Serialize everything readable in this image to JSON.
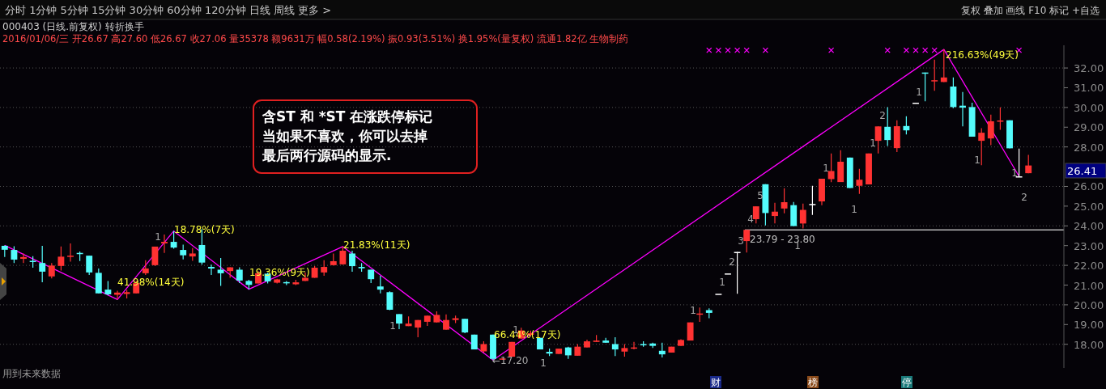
{
  "chart_data": {
    "type": "candlestick",
    "title": "000403 (日线.前复权) 转折换手",
    "subtitle": "2016/01/06/三 开26.67 高27.60 低26.67 收27.06 量35378 额9631万 幅0.58(2.19%) 振0.93(3.51%) 换1.95%(量复权) 流通1.82亿 生物制药",
    "categories": [
      null,
      null,
      null,
      null,
      null,
      null,
      null,
      null,
      null,
      null,
      null,
      null,
      null,
      null,
      null,
      null,
      null,
      null,
      null,
      null,
      null,
      null,
      null,
      null,
      null,
      null,
      null,
      null,
      null,
      null,
      null,
      null,
      null,
      null,
      null,
      null,
      null,
      null,
      null,
      null,
      null,
      null,
      null,
      null,
      null,
      null,
      null,
      null,
      null,
      null,
      null,
      null,
      null,
      null,
      null,
      null,
      null,
      null,
      null,
      null,
      null,
      null,
      null,
      null,
      null,
      null,
      null,
      null,
      null,
      null,
      null,
      null,
      null,
      null,
      null,
      null,
      null,
      null,
      null,
      null,
      null,
      null,
      null,
      null,
      null,
      null,
      null,
      null,
      null,
      null,
      null,
      null,
      null,
      null,
      null,
      null,
      null,
      null,
      null,
      null,
      null,
      null,
      null,
      null,
      null,
      null,
      null,
      null,
      null,
      null
    ],
    "ohlc": [
      [
        22.99,
        23.01,
        22.42,
        22.79
      ],
      [
        22.78,
        22.97,
        22.12,
        22.29
      ],
      [
        22.33,
        22.6,
        22.12,
        22.42
      ],
      [
        22.23,
        22.47,
        21.88,
        22.21
      ],
      [
        22.12,
        22.99,
        21.14,
        21.68
      ],
      [
        21.44,
        22.12,
        21.34,
        21.99
      ],
      [
        21.97,
        22.96,
        21.74,
        22.44
      ],
      [
        22.44,
        23.11,
        22.19,
        22.49
      ],
      [
        22.63,
        22.7,
        22.22,
        22.6
      ],
      [
        22.49,
        22.49,
        21.51,
        21.64
      ],
      [
        21.62,
        21.84,
        20.58,
        20.58
      ],
      [
        20.77,
        21.21,
        20.48,
        20.53
      ],
      [
        20.51,
        20.71,
        20.27,
        20.62
      ],
      [
        20.55,
        20.75,
        20.32,
        20.64
      ],
      [
        20.58,
        21.23,
        20.58,
        21.1
      ],
      [
        21.6,
        22.26,
        21.51,
        21.84
      ],
      [
        22.01,
        22.95,
        21.97,
        22.95
      ],
      [
        23.11,
        23.56,
        22.63,
        23.19
      ],
      [
        23.19,
        23.74,
        22.84,
        22.9
      ],
      [
        22.78,
        23.05,
        22.3,
        22.51
      ],
      [
        22.45,
        22.88,
        22.23,
        22.6
      ],
      [
        23.03,
        23.84,
        22.03,
        22.14
      ],
      [
        21.92,
        22.03,
        21.51,
        21.84
      ],
      [
        21.78,
        22.37,
        20.96,
        21.6
      ],
      [
        21.71,
        21.9,
        21.37,
        21.9
      ],
      [
        21.78,
        21.9,
        21.1,
        21.23
      ],
      [
        21.21,
        21.27,
        20.79,
        21.01
      ],
      [
        21.08,
        21.71,
        21.08,
        21.6
      ],
      [
        21.58,
        21.62,
        21.08,
        21.19
      ],
      [
        21.12,
        21.32,
        21.08,
        21.29
      ],
      [
        21.15,
        21.21,
        21.0,
        21.1
      ],
      [
        21.04,
        21.27,
        21.0,
        21.14
      ],
      [
        21.21,
        21.64,
        21.21,
        21.37
      ],
      [
        21.37,
        21.96,
        21.37,
        21.88
      ],
      [
        21.64,
        22.26,
        21.47,
        21.92
      ],
      [
        22.01,
        22.6,
        21.99,
        22.21
      ],
      [
        22.05,
        22.95,
        22.03,
        22.74
      ],
      [
        22.6,
        22.74,
        21.68,
        21.96
      ],
      [
        21.92,
        22.12,
        21.68,
        21.85
      ],
      [
        21.78,
        21.78,
        21.1,
        21.3
      ],
      [
        20.93,
        21.47,
        20.58,
        20.77
      ],
      [
        20.64,
        20.68,
        19.73,
        19.75
      ],
      [
        19.53,
        19.53,
        18.77,
        19.05
      ],
      [
        18.92,
        19.41,
        18.92,
        19.05
      ],
      [
        18.85,
        19.23,
        18.36,
        19.23
      ],
      [
        19.14,
        19.45,
        18.93,
        19.45
      ],
      [
        19.11,
        19.67,
        19.11,
        19.49
      ],
      [
        18.74,
        19.51,
        18.74,
        19.23
      ],
      [
        19.23,
        19.45,
        19.07,
        19.32
      ],
      [
        19.29,
        19.29,
        18.56,
        18.6
      ],
      [
        18.49,
        18.49,
        17.74,
        17.74
      ],
      [
        17.64,
        18.15,
        17.58,
        18.01
      ],
      [
        18.49,
        18.49,
        17.2,
        17.26
      ],
      [
        17.22,
        17.3,
        17.21,
        17.28
      ],
      [
        17.37,
        18.12,
        17.37,
        18.12
      ],
      [
        18.29,
        18.84,
        18.29,
        18.7
      ],
      [
        18.48,
        18.7,
        18.4,
        18.56
      ],
      [
        18.33,
        18.33,
        17.74,
        17.74
      ],
      [
        17.62,
        17.78,
        17.4,
        17.53
      ],
      [
        17.51,
        17.78,
        17.51,
        17.78
      ],
      [
        17.84,
        17.88,
        17.26,
        17.44
      ],
      [
        17.42,
        18.01,
        17.42,
        17.88
      ],
      [
        17.84,
        18.23,
        17.84,
        18.15
      ],
      [
        18.12,
        18.47,
        18.12,
        18.19
      ],
      [
        18.19,
        18.33,
        18.08,
        18.08
      ],
      [
        18.01,
        18.36,
        17.4,
        17.74
      ],
      [
        17.63,
        18.01,
        17.37,
        17.81
      ],
      [
        17.78,
        18.12,
        17.74,
        17.84
      ],
      [
        18.01,
        18.15,
        17.88,
        17.95
      ],
      [
        18.04,
        18.08,
        17.81,
        17.92
      ],
      [
        17.67,
        18.08,
        17.33,
        17.49
      ],
      [
        17.58,
        17.88,
        17.58,
        17.88
      ],
      [
        17.92,
        18.25,
        17.92,
        18.22
      ],
      [
        18.19,
        19.11,
        18.19,
        19.11
      ],
      [
        19.51,
        19.86,
        19.14,
        19.56
      ],
      [
        19.73,
        19.82,
        19.32,
        19.59
      ],
      [
        20.56,
        20.56,
        20.56,
        20.56
      ],
      [
        21.59,
        21.59,
        21.59,
        21.59
      ],
      [
        22.68,
        22.68,
        20.56,
        22.68
      ],
      [
        23.23,
        23.8,
        22.65,
        23.8
      ],
      [
        24.34,
        24.99,
        24.12,
        24.99
      ],
      [
        26.11,
        26.11,
        24.02,
        24.65
      ],
      [
        24.5,
        25.17,
        24.12,
        24.72
      ],
      [
        24.88,
        25.91,
        24.64,
        25.2
      ],
      [
        25.05,
        25.21,
        23.99,
        23.99
      ],
      [
        24.12,
        25.13,
        23.87,
        24.81
      ],
      [
        25.11,
        26.03,
        24.55,
        25.11
      ],
      [
        25.24,
        26.39,
        25.05,
        26.39
      ],
      [
        26.37,
        27.67,
        26.21,
        26.78
      ],
      [
        26.22,
        27.83,
        26.22,
        27.25
      ],
      [
        27.46,
        27.46,
        25.92,
        25.92
      ],
      [
        26.03,
        26.89,
        25.62,
        26.34
      ],
      [
        26.1,
        27.67,
        26.1,
        27.67
      ],
      [
        28.31,
        29.04,
        27.67,
        29.04
      ],
      [
        29.02,
        30.02,
        28.05,
        28.35
      ],
      [
        27.94,
        29.35,
        27.74,
        29.05
      ],
      [
        29.06,
        29.55,
        28.63,
        28.84
      ],
      [
        30.24,
        30.24,
        30.24,
        30.24
      ],
      [
        31.77,
        31.77,
        30.31,
        31.77
      ],
      [
        31.34,
        32.42,
        30.84,
        31.38
      ],
      [
        31.29,
        32.94,
        31.29,
        31.52
      ],
      [
        31.06,
        31.52,
        29.96,
        30.02
      ],
      [
        30.09,
        30.78,
        29.04,
        29.99
      ],
      [
        30.02,
        30.24,
        28.52,
        28.52
      ],
      [
        28.31,
        28.95,
        27.08,
        28.72
      ],
      [
        28.43,
        29.64,
        28.09,
        29.3
      ],
      [
        29.28,
        30.01,
        28.87,
        29.34
      ],
      [
        29.35,
        29.35,
        27.93,
        27.93
      ],
      [
        26.51,
        27.92,
        26.51,
        26.51
      ],
      [
        26.67,
        27.6,
        26.67,
        27.06
      ]
    ],
    "colors": [
      "#54fcfc",
      "#54fcfc",
      "#ff3232",
      "#54fcfc",
      "#54fcfc",
      "#ff3232",
      "#ff3232",
      "#ff3232",
      "#54fcfc",
      "#54fcfc",
      "#54fcfc",
      "#54fcfc",
      "#ff3232",
      "#ff3232",
      "#ff3232",
      "#ff3232",
      "#ff3232",
      "#ff3232",
      "#54fcfc",
      "#54fcfc",
      "#ff3232",
      "#54fcfc",
      "#54fcfc",
      "#54fcfc",
      "#ff3232",
      "#54fcfc",
      "#54fcfc",
      "#ff3232",
      "#54fcfc",
      "#ff3232",
      "#54fcfc",
      "#ff3232",
      "#ff3232",
      "#ff3232",
      "#ff3232",
      "#ff3232",
      "#ff3232",
      "#54fcfc",
      "#54fcfc",
      "#54fcfc",
      "#54fcfc",
      "#54fcfc",
      "#54fcfc",
      "#ff3232",
      "#ff3232",
      "#ff3232",
      "#ff3232",
      "#ff3232",
      "#ff3232",
      "#54fcfc",
      "#54fcfc",
      "#ff3232",
      "#54fcfc",
      "#ff3232",
      "#ff3232",
      "#ff3232",
      "#ff3232",
      "#54fcfc",
      "#54fcfc",
      "#ff3232",
      "#54fcfc",
      "#ff3232",
      "#ff3232",
      "#ff3232",
      "#54fcfc",
      "#54fcfc",
      "#ff3232",
      "#ff3232",
      "#54fcfc",
      "#54fcfc",
      "#54fcfc",
      "#ff3232",
      "#ff3232",
      "#ff3232",
      "#ff3232",
      "#54fcfc",
      "#ffffff",
      "#ffffff",
      "#ffffff",
      "#ff3232",
      "#ff3232",
      "#54fcfc",
      "#ff3232",
      "#ff3232",
      "#54fcfc",
      "#ff3232",
      "#ffffff",
      "#ff3232",
      "#ff3232",
      "#ff3232",
      "#54fcfc",
      "#ff3232",
      "#ff3232",
      "#ff3232",
      "#54fcfc",
      "#ff3232",
      "#54fcfc",
      "#ffffff",
      "#54fcfc",
      "#ff3232",
      "#ff3232",
      "#54fcfc",
      "#54fcfc",
      "#54fcfc",
      "#ff3232",
      "#ff3232",
      "#ff3232",
      "#54fcfc",
      "#ffffff",
      "#ff3232"
    ],
    "series": [
      {
        "type": "line",
        "color": "#ff00ff",
        "values": [
          23.01,
          null,
          null,
          null,
          null,
          null,
          null,
          null,
          null,
          null,
          null,
          null,
          20.27,
          null,
          null,
          null,
          null,
          null,
          23.74,
          null,
          null,
          null,
          null,
          null,
          null,
          null,
          20.79,
          null,
          null,
          null,
          null,
          null,
          null,
          null,
          null,
          null,
          22.95,
          null,
          null,
          null,
          null,
          null,
          null,
          null,
          null,
          null,
          null,
          null,
          null,
          null,
          null,
          null,
          17.2,
          null,
          null,
          null,
          null,
          null,
          null,
          null,
          null,
          null,
          null,
          null,
          null,
          null,
          null,
          null,
          null,
          null,
          null,
          null,
          null,
          null,
          null,
          null,
          null,
          null,
          null,
          null,
          null,
          null,
          null,
          null,
          null,
          null,
          null,
          null,
          null,
          null,
          null,
          null,
          null,
          null,
          null,
          null,
          null,
          null,
          null,
          null,
          32.94,
          null,
          null,
          null,
          null,
          null,
          null,
          null,
          26.51,
          null
        ]
      },
      {
        "type": "scatter",
        "color": "#ff00ff",
        "marker": "cross",
        "values": [
          null,
          null,
          null,
          null,
          null,
          null,
          null,
          null,
          null,
          null,
          null,
          null,
          null,
          null,
          null,
          null,
          null,
          null,
          null,
          null,
          null,
          null,
          null,
          null,
          null,
          null,
          null,
          null,
          null,
          null,
          null,
          null,
          null,
          null,
          null,
          null,
          null,
          null,
          null,
          null,
          null,
          null,
          null,
          null,
          null,
          null,
          null,
          null,
          null,
          null,
          null,
          null,
          null,
          null,
          null,
          null,
          null,
          null,
          null,
          null,
          null,
          null,
          null,
          null,
          null,
          null,
          null,
          null,
          null,
          null,
          null,
          null,
          null,
          null,
          null,
          32.9,
          32.9,
          32.9,
          32.9,
          32.9,
          null,
          32.9,
          null,
          null,
          null,
          null,
          null,
          null,
          32.9,
          null,
          null,
          null,
          null,
          null,
          32.9,
          null,
          32.9,
          32.9,
          32.9,
          32.9,
          null,
          null,
          null,
          null,
          null,
          null,
          null,
          null,
          32.9,
          null
        ]
      }
    ],
    "ylim": [
      16.8,
      33.15
    ],
    "yticks": [
      {
        "value": 18,
        "label": "18.00"
      },
      {
        "value": 19,
        "label": "19.00"
      },
      {
        "value": 20,
        "label": "20.00"
      },
      {
        "value": 21,
        "label": "21.00"
      },
      {
        "value": 22,
        "label": "22.00"
      },
      {
        "value": 23,
        "label": "23.00"
      },
      {
        "value": 24,
        "label": "24.00"
      },
      {
        "value": 25,
        "label": "25.00"
      },
      {
        "value": 26,
        "label": "26.00"
      },
      {
        "value": 28,
        "label": "28.00"
      },
      {
        "value": 29,
        "label": "29.00"
      },
      {
        "value": 30,
        "label": "30.00"
      },
      {
        "value": 31,
        "label": "31.00"
      },
      {
        "value": 32,
        "label": "32.00"
      }
    ],
    "grid": "y",
    "tick_labels": "y",
    "bands": [
      {
        "axis": "y",
        "from": 23.79,
        "to": 23.8,
        "label": "23.79 - 23.80",
        "color": "#c0c0c0"
      }
    ],
    "annotations": [
      "分时 1分钟 5分钟 15分钟 30分钟 60分钟 120分钟 日线 周线 更多 >",
      "复权 叠加 画线 F10 标记 +自选",
      "含ST 和 *ST 在涨跌停标记当如果不喜欢，你可以去掉最后两行源码的显示.",
      "用到未来数据",
      "41.98%(14天)",
      "18.78%(7天)",
      "19.36%(9天)",
      "21.83%(11天)",
      "66.44%(17天)",
      "216.63%(49天)",
      "←17.20",
      "1",
      "1",
      "1",
      "1",
      "1",
      "1",
      "2",
      "3",
      "4",
      "5",
      "1",
      "1",
      "1",
      "1",
      "2",
      "1",
      "1",
      "1",
      "2",
      "26.41",
      "财",
      "榜",
      "停"
    ]
  }
}
